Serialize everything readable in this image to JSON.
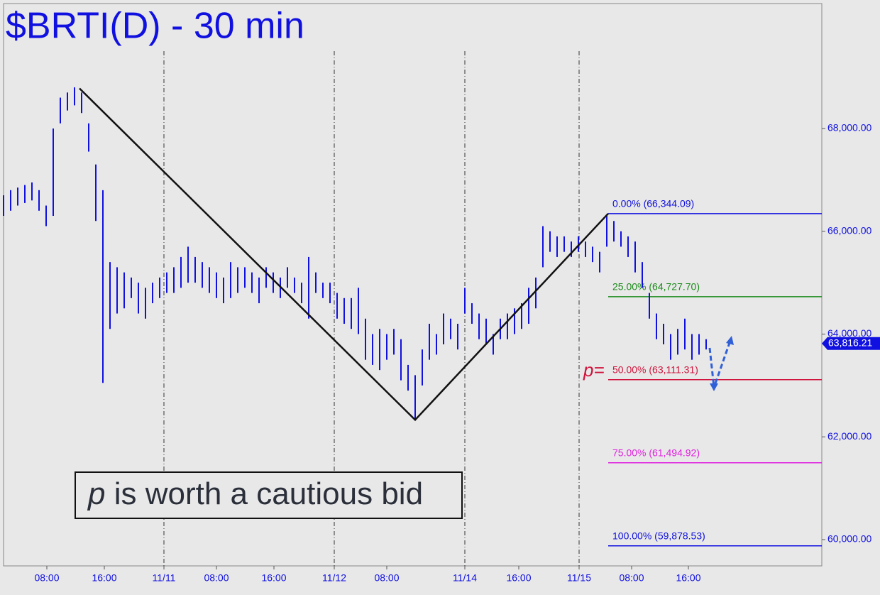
{
  "chart_data": {
    "type": "ohlc",
    "title": "$BRTI(D) - 30 min",
    "x": [
      0,
      2,
      4,
      6,
      8,
      10,
      12,
      14,
      16,
      18,
      20,
      22,
      24,
      26,
      28,
      30,
      32,
      34,
      36,
      38,
      40,
      42,
      44,
      46,
      48,
      50,
      52,
      54,
      56,
      58,
      60,
      62,
      64,
      66,
      68,
      70,
      72,
      74,
      76,
      78,
      80,
      82,
      84,
      86,
      88,
      90,
      92,
      94,
      96,
      98,
      100,
      102,
      104,
      106,
      108,
      110,
      112,
      114,
      116,
      118,
      120,
      122,
      124,
      126,
      128,
      130,
      132,
      134,
      136,
      138,
      140,
      142,
      144,
      146,
      148,
      150,
      152,
      154,
      156,
      158,
      160,
      162,
      164,
      166,
      168,
      170,
      172,
      174,
      176,
      178,
      180,
      182,
      184,
      186,
      188,
      190,
      192,
      194,
      196,
      198
    ],
    "high": [
      66700,
      66800,
      66850,
      66900,
      66950,
      66800,
      66500,
      68000,
      68600,
      68700,
      68800,
      68700,
      68100,
      67300,
      66800,
      65400,
      65300,
      65200,
      65100,
      65000,
      64900,
      65000,
      65100,
      65200,
      65300,
      65500,
      65700,
      65500,
      65400,
      65300,
      65200,
      65100,
      65400,
      65300,
      65300,
      65200,
      65100,
      65300,
      65200,
      65100,
      65300,
      65100,
      65000,
      65500,
      65200,
      65000,
      65000,
      64800,
      64700,
      64700,
      64900,
      64300,
      64000,
      64100,
      64000,
      64100,
      63900,
      63400,
      63200,
      63700,
      64200,
      64000,
      64400,
      64300,
      64200,
      64900,
      64600,
      64400,
      64300,
      64000,
      64300,
      64400,
      64500,
      64600,
      64900,
      65100,
      66100,
      66000,
      65900,
      65900,
      65800,
      65900,
      65800,
      65700,
      65600,
      66300,
      66200,
      66000,
      65900,
      65800,
      65400,
      64800,
      64400,
      64200,
      64000,
      64100,
      64300,
      64000,
      64000,
      63900
    ],
    "low": [
      66300,
      66400,
      66500,
      66550,
      66600,
      66400,
      66100,
      66300,
      68100,
      68350,
      68450,
      68300,
      67550,
      66200,
      63050,
      64100,
      64400,
      64500,
      64700,
      64400,
      64300,
      64600,
      64700,
      64800,
      64800,
      64900,
      65000,
      65000,
      64900,
      64800,
      64700,
      64600,
      64700,
      64800,
      64900,
      64800,
      64600,
      64900,
      64800,
      64700,
      64900,
      64800,
      64600,
      64300,
      64800,
      64700,
      64600,
      64300,
      64200,
      64100,
      64000,
      63500,
      63400,
      63300,
      63500,
      63600,
      63100,
      62900,
      62350,
      63000,
      63500,
      63600,
      63800,
      63900,
      63700,
      64400,
      64200,
      63900,
      63800,
      63600,
      63900,
      63900,
      64000,
      64100,
      64200,
      64500,
      65300,
      65600,
      65500,
      65600,
      65500,
      65600,
      65500,
      65400,
      65200,
      65700,
      65800,
      65700,
      65500,
      65200,
      64900,
      64300,
      63900,
      63800,
      63500,
      63600,
      63700,
      63500,
      63600,
      63700
    ],
    "color": "#1010e0",
    "xlim": [
      0,
      230.6
    ],
    "xticks": [
      {
        "value": 12.2,
        "label": "08:00"
      },
      {
        "value": 28.4,
        "label": "16:00"
      },
      {
        "value": 45.2,
        "label": "11/11"
      },
      {
        "value": 60,
        "label": "08:00"
      },
      {
        "value": 76.2,
        "label": "16:00"
      },
      {
        "value": 93.2,
        "label": "11/12"
      },
      {
        "value": 108,
        "label": "08:00"
      },
      {
        "value": 130,
        "label": "11/14"
      },
      {
        "value": 145.2,
        "label": "16:00"
      },
      {
        "value": 162.2,
        "label": "11/15"
      },
      {
        "value": 177,
        "label": "08:00"
      },
      {
        "value": 193,
        "label": "16:00"
      }
    ],
    "ylim": [
      59489,
      70431
    ],
    "yticks": [
      {
        "value": 60000,
        "label": "60,000.00"
      },
      {
        "value": 62000,
        "label": "62,000.00"
      },
      {
        "value": 64000,
        "label": "64,000.00"
      },
      {
        "value": 66000,
        "label": "66,000.00"
      },
      {
        "value": 68000,
        "label": "68,000.00"
      }
    ],
    "last": {
      "value": 63816.21,
      "label": "63,816.21"
    },
    "zigzag": {
      "x": [
        21.4,
        116,
        170.4
      ],
      "values": [
        68780,
        62330,
        66344.09
      ]
    },
    "levels": [
      {
        "value": 66344.09,
        "label": "0.00% (66,344.09)",
        "color": "#1010e0"
      },
      {
        "value": 64727.7,
        "label": "25.00% (64,727.70)",
        "color": "#1a8a1a"
      },
      {
        "value": 63111.31,
        "label": "50.00% (63,111.31)",
        "color": "#d0143c"
      },
      {
        "value": 61494.92,
        "label": "75.00% (61,494.92)",
        "color": "#e020e0"
      },
      {
        "value": 59878.53,
        "label": "100.00% (59,878.53)",
        "color": "#1010e0"
      }
    ],
    "p_label": "p=",
    "annotation": [
      "p",
      " is worth a cautious bid"
    ]
  }
}
